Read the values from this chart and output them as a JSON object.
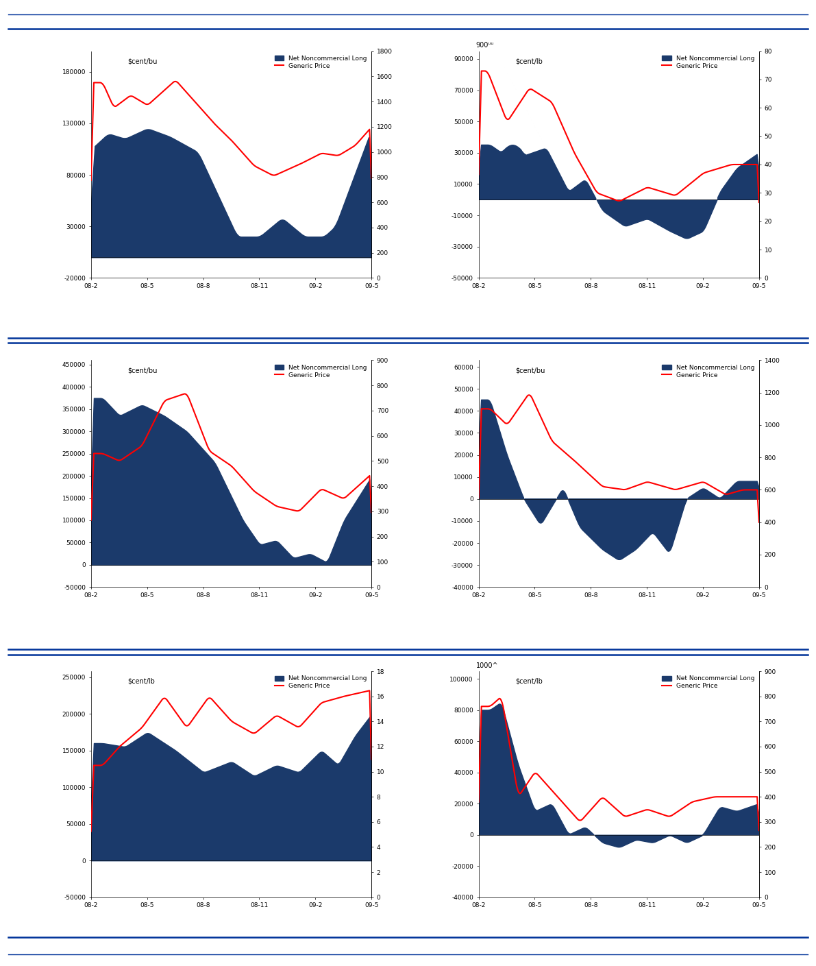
{
  "panels": [
    {
      "ylabel": "$cent/bu",
      "ylim_left": [
        -20000,
        200000
      ],
      "ylim_right": [
        0,
        1800
      ],
      "yticks_left": [
        -20000,
        30000,
        80000,
        130000,
        180000
      ],
      "yticks_right": [
        0,
        200,
        400,
        600,
        800,
        1000,
        1200,
        1400,
        1600,
        1800
      ],
      "top_label": ""
    },
    {
      "ylabel": "$cent/lb",
      "ylim_left": [
        -50000,
        95000
      ],
      "ylim_right": [
        0,
        80
      ],
      "yticks_left": [
        -50000,
        -30000,
        -10000,
        10000,
        30000,
        50000,
        70000,
        90000
      ],
      "yticks_right": [
        0,
        10,
        20,
        30,
        40,
        50,
        60,
        70,
        80
      ],
      "top_label": "900ᵘᵘ"
    },
    {
      "ylabel": "$cent/bu",
      "ylim_left": [
        -50000,
        460000
      ],
      "ylim_right": [
        0,
        900
      ],
      "yticks_left": [
        -50000,
        0,
        50000,
        100000,
        150000,
        200000,
        250000,
        300000,
        350000,
        400000,
        450000
      ],
      "yticks_right": [
        0,
        100,
        200,
        300,
        400,
        500,
        600,
        700,
        800,
        900
      ],
      "top_label": ""
    },
    {
      "ylabel": "$cent/bu",
      "ylim_left": [
        -40000,
        63000
      ],
      "ylim_right": [
        0,
        1400
      ],
      "yticks_left": [
        -40000,
        -30000,
        -20000,
        -10000,
        0,
        10000,
        20000,
        30000,
        40000,
        50000,
        60000
      ],
      "yticks_right": [
        0,
        200,
        400,
        600,
        800,
        1000,
        1200,
        1400
      ],
      "top_label": ""
    },
    {
      "ylabel": "$cent/lb",
      "ylim_left": [
        -50000,
        258000
      ],
      "ylim_right": [
        0,
        18
      ],
      "yticks_left": [
        -50000,
        0,
        50000,
        100000,
        150000,
        200000,
        250000
      ],
      "yticks_right": [
        0,
        2,
        4,
        6,
        8,
        10,
        12,
        14,
        16,
        18
      ],
      "top_label": ""
    },
    {
      "ylabel": "$cent/lb",
      "ylim_left": [
        -40000,
        105000
      ],
      "ylim_right": [
        0,
        900
      ],
      "yticks_left": [
        -40000,
        -20000,
        0,
        20000,
        40000,
        60000,
        80000,
        100000
      ],
      "yticks_right": [
        0,
        100,
        200,
        300,
        400,
        500,
        600,
        700,
        800,
        900
      ],
      "top_label": "1000^"
    }
  ],
  "legend_fill_label": "Net Noncommercial Long",
  "legend_line_label": "Generic Price",
  "fill_color": "#1b3a6b",
  "price_color": "#ff0000",
  "xtick_labels": [
    "08-2",
    "08-5",
    "08-8",
    "08-11",
    "09-2",
    "09-5"
  ],
  "separator_color": "#003399",
  "bg_color": "#ffffff"
}
